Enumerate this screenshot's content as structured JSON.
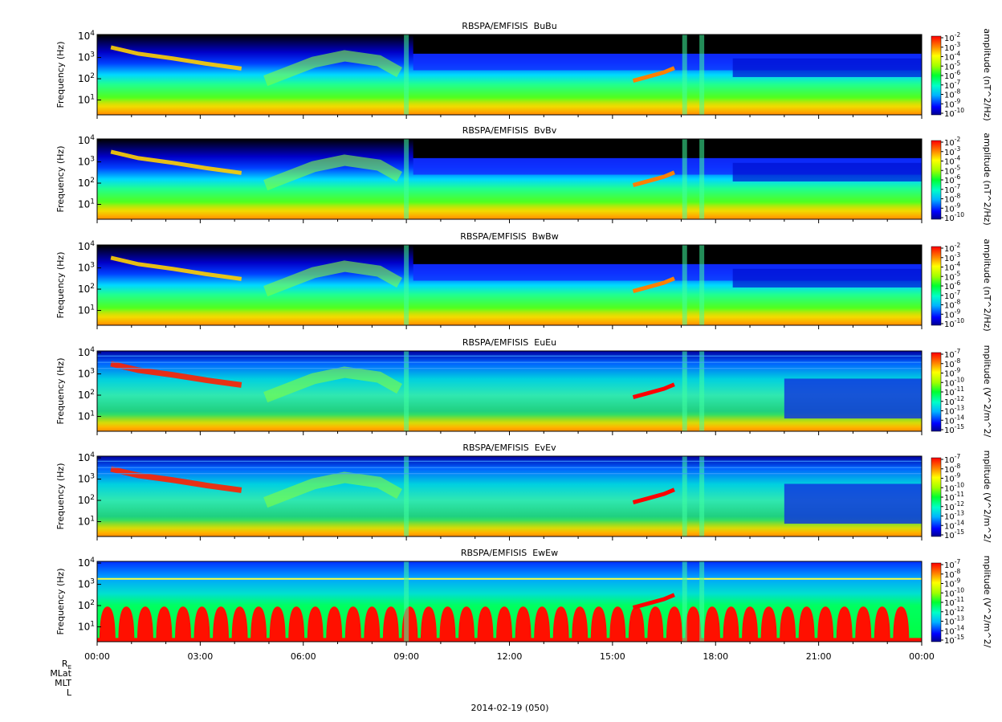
{
  "figure": {
    "date_label": "2014-02-19 (050)",
    "x_ticks": [
      "00:00",
      "03:00",
      "06:00",
      "09:00",
      "12:00",
      "15:00",
      "18:00",
      "21:00",
      "00:00"
    ],
    "ephemeris_labels": [
      "RE",
      "MLat",
      "MLT",
      "L"
    ]
  },
  "chart_data": [
    {
      "type": "heatmap",
      "title": "RBSPA/EMFISIS  BuBu",
      "ylabel": "Frequency (Hz)",
      "y_scale": "log",
      "ylim": [
        2,
        12000
      ],
      "yticks": [
        "10^1",
        "10^2",
        "10^3",
        "10^4"
      ],
      "xlim": [
        "00:00",
        "24:00"
      ],
      "colorbar": {
        "label": "amplitude (nT^2/Hz)",
        "ticks": [
          "10^-2",
          "10^-3",
          "10^-4",
          "10^-5",
          "10^-6",
          "10^-7",
          "10^-8",
          "10^-9",
          "10^-10"
        ]
      }
    },
    {
      "type": "heatmap",
      "title": "RBSPA/EMFISIS  BvBv",
      "ylabel": "Frequency (Hz)",
      "y_scale": "log",
      "ylim": [
        2,
        12000
      ],
      "yticks": [
        "10^1",
        "10^2",
        "10^3",
        "10^4"
      ],
      "xlim": [
        "00:00",
        "24:00"
      ],
      "colorbar": {
        "label": "amplitude (nT^2/Hz)",
        "ticks": [
          "10^-2",
          "10^-3",
          "10^-4",
          "10^-5",
          "10^-6",
          "10^-7",
          "10^-8",
          "10^-9",
          "10^-10"
        ]
      }
    },
    {
      "type": "heatmap",
      "title": "RBSPA/EMFISIS  BwBw",
      "ylabel": "Frequency (Hz)",
      "y_scale": "log",
      "ylim": [
        2,
        12000
      ],
      "yticks": [
        "10^1",
        "10^2",
        "10^3",
        "10^4"
      ],
      "xlim": [
        "00:00",
        "24:00"
      ],
      "colorbar": {
        "label": "amplitude (nT^2/Hz)",
        "ticks": [
          "10^-2",
          "10^-3",
          "10^-4",
          "10^-5",
          "10^-6",
          "10^-7",
          "10^-8",
          "10^-9",
          "10^-10"
        ]
      }
    },
    {
      "type": "heatmap",
      "title": "RBSPA/EMFISIS  EuEu",
      "ylabel": "Frequency (Hz)",
      "y_scale": "log",
      "ylim": [
        2,
        12000
      ],
      "yticks": [
        "10^1",
        "10^2",
        "10^3",
        "10^4"
      ],
      "xlim": [
        "00:00",
        "24:00"
      ],
      "colorbar": {
        "label": "mplitude (V^2/m^2/",
        "ticks": [
          "10^-7",
          "10^-8",
          "10^-9",
          "10^-10",
          "10^-11",
          "10^-12",
          "10^-13",
          "10^-14",
          "10^-15"
        ]
      }
    },
    {
      "type": "heatmap",
      "title": "RBSPA/EMFISIS  EvEv",
      "ylabel": "Frequency (Hz)",
      "y_scale": "log",
      "ylim": [
        2,
        12000
      ],
      "yticks": [
        "10^1",
        "10^2",
        "10^3",
        "10^4"
      ],
      "xlim": [
        "00:00",
        "24:00"
      ],
      "colorbar": {
        "label": "mplitude (V^2/m^2/",
        "ticks": [
          "10^-7",
          "10^-8",
          "10^-9",
          "10^-10",
          "10^-11",
          "10^-12",
          "10^-13",
          "10^-14",
          "10^-15"
        ]
      }
    },
    {
      "type": "heatmap",
      "title": "RBSPA/EMFISIS  EwEw",
      "ylabel": "Frequency (Hz)",
      "y_scale": "log",
      "ylim": [
        2,
        12000
      ],
      "yticks": [
        "10^1",
        "10^2",
        "10^3",
        "10^4"
      ],
      "xlim": [
        "00:00",
        "24:00"
      ],
      "colorbar": {
        "label": "mplitude (V^2/m^2/",
        "ticks": [
          "10^-7",
          "10^-8",
          "10^-9",
          "10^-10",
          "10^-11",
          "10^-12",
          "10^-13",
          "10^-14",
          "10^-15"
        ]
      }
    }
  ]
}
